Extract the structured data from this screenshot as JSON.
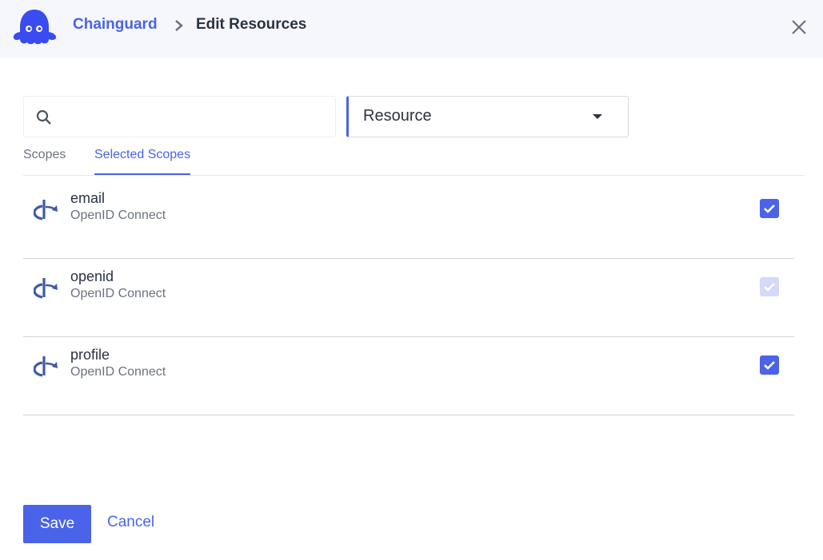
{
  "header": {
    "brand": "Chainguard",
    "title": "Edit Resources"
  },
  "search": {
    "value": "",
    "placeholder": ""
  },
  "resource_select": {
    "selected": "Resource"
  },
  "tabs": [
    {
      "label": "Scopes",
      "active": false
    },
    {
      "label": "Selected Scopes",
      "active": true
    }
  ],
  "scopes": [
    {
      "name": "email",
      "provider": "OpenID Connect",
      "checked": true,
      "disabled": false
    },
    {
      "name": "openid",
      "provider": "OpenID Connect",
      "checked": true,
      "disabled": true
    },
    {
      "name": "profile",
      "provider": "OpenID Connect",
      "checked": true,
      "disabled": false
    }
  ],
  "actions": {
    "save": "Save",
    "cancel": "Cancel"
  },
  "colors": {
    "accent": "#4a63e8",
    "header_bg": "#f6f7fc",
    "text": "#2a3342"
  }
}
